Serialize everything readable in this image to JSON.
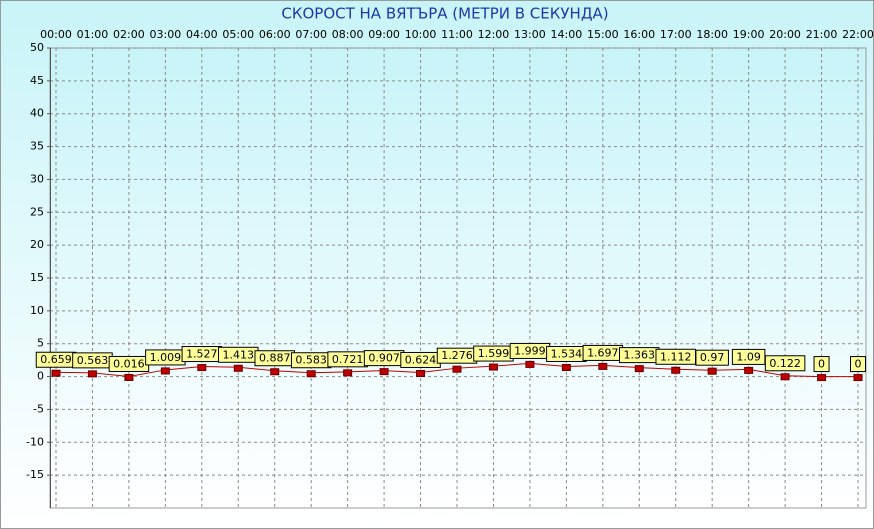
{
  "chart_data": {
    "type": "line",
    "title": "СКОРОСТ НА ВЯТЪРА (МЕТРИ В СЕКУНДА)",
    "categories": [
      "00:00",
      "01:00",
      "02:00",
      "03:00",
      "04:00",
      "05:00",
      "06:00",
      "07:00",
      "08:00",
      "09:00",
      "10:00",
      "11:00",
      "12:00",
      "13:00",
      "14:00",
      "15:00",
      "16:00",
      "17:00",
      "18:00",
      "19:00",
      "20:00",
      "21:00",
      "22:00"
    ],
    "values": [
      0.659,
      0.563,
      0.016,
      1.009,
      1.527,
      1.413,
      0.887,
      0.583,
      0.721,
      0.907,
      0.624,
      1.276,
      1.599,
      1.999,
      1.534,
      1.697,
      1.363,
      1.112,
      0.97,
      1.09,
      0.122,
      0,
      0
    ],
    "color": "#c00000",
    "ylim": [
      -20,
      50
    ],
    "yticks": [
      -15,
      -10,
      -5,
      0,
      5,
      10,
      15,
      20,
      25,
      30,
      35,
      40,
      45,
      50
    ],
    "grid": true
  }
}
